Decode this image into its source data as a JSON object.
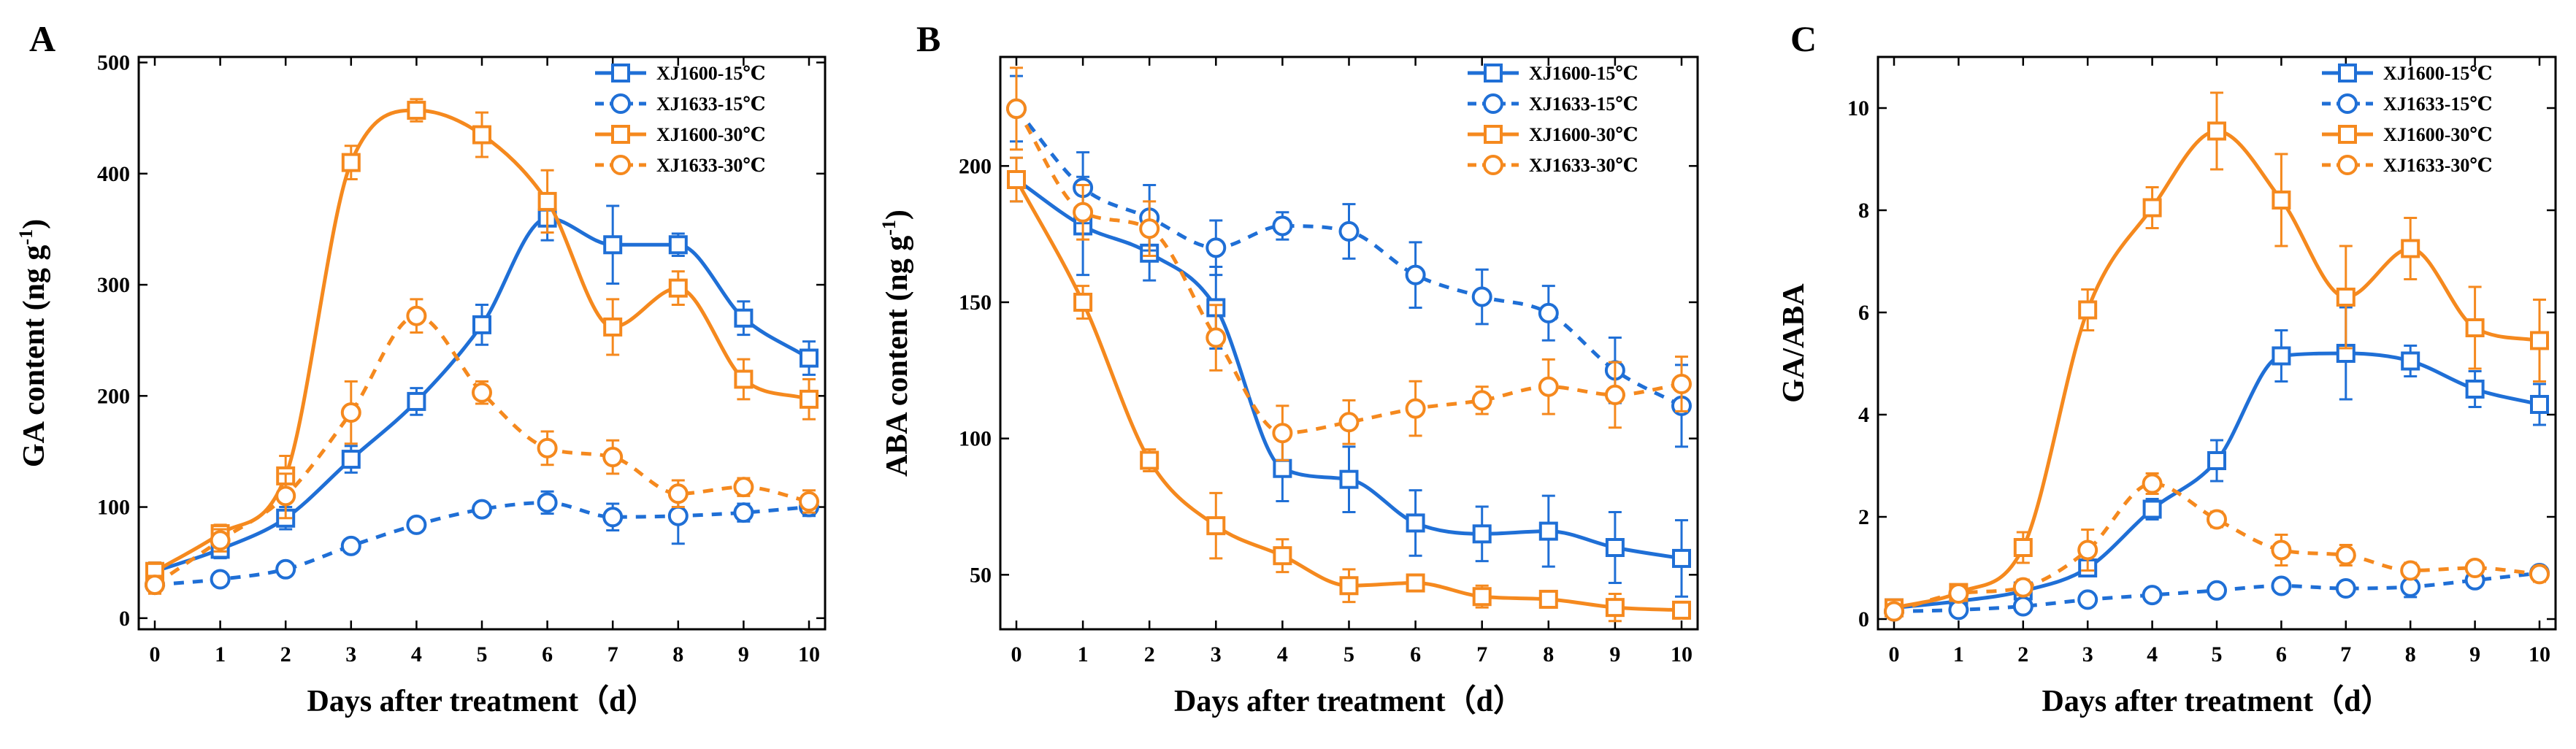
{
  "chart_data": [
    {
      "panel": "A",
      "type": "line",
      "xlabel": "Days after treatment（d）",
      "ylabel": "GA content (ng g",
      "ylabel_sup": "-1",
      "ylabel_end": ")",
      "xlim": [
        0,
        10
      ],
      "ylim": [
        -10,
        505
      ],
      "xticks": [
        0,
        1,
        2,
        3,
        4,
        5,
        6,
        7,
        8,
        9,
        10
      ],
      "yticks": [
        0,
        100,
        200,
        300,
        400,
        500
      ],
      "legend_position": "top-right",
      "series": [
        {
          "name": "XJ1600-15℃",
          "color": "#1f6fd6",
          "marker": "square",
          "dash": false,
          "x": [
            0,
            1,
            2,
            3,
            4,
            5,
            6,
            7,
            8,
            9,
            10
          ],
          "values": [
            42,
            62,
            90,
            143,
            195,
            264,
            360,
            336,
            336,
            270,
            234
          ],
          "err": [
            8,
            8,
            10,
            12,
            12,
            18,
            20,
            35,
            10,
            15,
            15
          ]
        },
        {
          "name": "XJ1633-15℃",
          "color": "#1f6fd6",
          "marker": "circle",
          "dash": true,
          "x": [
            0,
            1,
            2,
            3,
            4,
            5,
            6,
            7,
            8,
            9,
            10
          ],
          "values": [
            30,
            35,
            44,
            65,
            84,
            98,
            104,
            91,
            92,
            95,
            100
          ],
          "err": [
            6,
            5,
            5,
            6,
            5,
            6,
            10,
            12,
            25,
            8,
            8
          ]
        },
        {
          "name": "XJ1600-30℃",
          "color": "#f5891e",
          "marker": "square",
          "dash": false,
          "x": [
            0,
            1,
            2,
            3,
            4,
            5,
            6,
            7,
            8,
            9,
            10
          ],
          "values": [
            42,
            76,
            128,
            410,
            457,
            435,
            375,
            262,
            297,
            215,
            197
          ],
          "err": [
            8,
            8,
            18,
            15,
            10,
            20,
            28,
            25,
            15,
            18,
            18
          ]
        },
        {
          "name": "XJ1633-30℃",
          "color": "#f5891e",
          "marker": "circle",
          "dash": true,
          "x": [
            0,
            1,
            2,
            3,
            4,
            5,
            6,
            7,
            8,
            9,
            10
          ],
          "values": [
            30,
            70,
            110,
            185,
            272,
            203,
            153,
            145,
            112,
            118,
            105
          ],
          "err": [
            8,
            10,
            20,
            28,
            15,
            10,
            15,
            15,
            12,
            8,
            10
          ]
        }
      ]
    },
    {
      "panel": "B",
      "type": "line",
      "xlabel": "Days after treatment（d）",
      "ylabel": "ABA content (ng g",
      "ylabel_sup": "-1",
      "ylabel_end": ")",
      "xlim": [
        0,
        10
      ],
      "ylim": [
        30,
        240
      ],
      "xticks": [
        0,
        1,
        2,
        3,
        4,
        5,
        6,
        7,
        8,
        9,
        10
      ],
      "yticks": [
        50,
        100,
        150,
        200
      ],
      "legend_position": "top-right",
      "series": [
        {
          "name": "XJ1600-15℃",
          "color": "#1f6fd6",
          "marker": "square",
          "dash": false,
          "x": [
            0,
            1,
            2,
            3,
            4,
            5,
            6,
            7,
            8,
            9,
            10
          ],
          "values": [
            195,
            178,
            168,
            148,
            89,
            85,
            69,
            65,
            66,
            60,
            56
          ],
          "err": [
            8,
            18,
            10,
            15,
            12,
            12,
            12,
            10,
            13,
            13,
            14
          ]
        },
        {
          "name": "XJ1633-15℃",
          "color": "#1f6fd6",
          "marker": "circle",
          "dash": true,
          "x": [
            0,
            1,
            2,
            3,
            4,
            5,
            6,
            7,
            8,
            9,
            10
          ],
          "values": [
            221,
            192,
            181,
            170,
            178,
            176,
            160,
            152,
            146,
            125,
            112
          ],
          "err": [
            12,
            13,
            12,
            10,
            5,
            10,
            12,
            10,
            10,
            12,
            15
          ]
        },
        {
          "name": "XJ1600-30℃",
          "color": "#f5891e",
          "marker": "square",
          "dash": false,
          "x": [
            0,
            1,
            2,
            3,
            4,
            5,
            6,
            7,
            8,
            9,
            10
          ],
          "values": [
            195,
            150,
            92,
            68,
            57,
            46,
            47,
            42,
            41,
            38,
            37
          ],
          "err": [
            8,
            6,
            4,
            12,
            6,
            6,
            3,
            4,
            3,
            5,
            3
          ]
        },
        {
          "name": "XJ1633-30℃",
          "color": "#f5891e",
          "marker": "circle",
          "dash": true,
          "x": [
            0,
            1,
            2,
            3,
            4,
            5,
            6,
            7,
            8,
            9,
            10
          ],
          "values": [
            221,
            183,
            177,
            137,
            102,
            106,
            111,
            114,
            119,
            116,
            120
          ],
          "err": [
            15,
            10,
            10,
            12,
            10,
            8,
            10,
            5,
            10,
            12,
            10
          ]
        }
      ]
    },
    {
      "panel": "C",
      "type": "line",
      "xlabel": "Days after treatment（d）",
      "ylabel": "GA/ABA",
      "ylabel_sup": "",
      "ylabel_end": "",
      "xlim": [
        0,
        10
      ],
      "ylim": [
        -0.2,
        11
      ],
      "xticks": [
        0,
        1,
        2,
        3,
        4,
        5,
        6,
        7,
        8,
        9,
        10
      ],
      "yticks": [
        0,
        2,
        4,
        6,
        8,
        10
      ],
      "legend_position": "top-right",
      "series": [
        {
          "name": "XJ1600-15℃",
          "color": "#1f6fd6",
          "marker": "square",
          "dash": false,
          "x": [
            0,
            1,
            2,
            3,
            4,
            5,
            6,
            7,
            8,
            9,
            10
          ],
          "values": [
            0.22,
            0.35,
            0.55,
            1.0,
            2.15,
            3.1,
            5.15,
            5.2,
            5.05,
            4.5,
            4.2
          ],
          "err": [
            0.08,
            0.1,
            0.12,
            0.15,
            0.2,
            0.4,
            0.5,
            0.9,
            0.3,
            0.35,
            0.4
          ]
        },
        {
          "name": "XJ1633-15℃",
          "color": "#1f6fd6",
          "marker": "circle",
          "dash": true,
          "x": [
            0,
            1,
            2,
            3,
            4,
            5,
            6,
            7,
            8,
            9,
            10
          ],
          "values": [
            0.15,
            0.18,
            0.25,
            0.38,
            0.47,
            0.56,
            0.65,
            0.6,
            0.63,
            0.76,
            0.9
          ],
          "err": [
            0.05,
            0.05,
            0.06,
            0.06,
            0.05,
            0.06,
            0.1,
            0.1,
            0.2,
            0.1,
            0.12
          ]
        },
        {
          "name": "XJ1600-30℃",
          "color": "#f5891e",
          "marker": "square",
          "dash": false,
          "x": [
            0,
            1,
            2,
            3,
            4,
            5,
            6,
            7,
            8,
            9,
            10
          ],
          "values": [
            0.22,
            0.52,
            1.4,
            6.05,
            8.05,
            9.55,
            8.2,
            6.3,
            7.25,
            5.7,
            5.45
          ],
          "err": [
            0.08,
            0.1,
            0.3,
            0.4,
            0.4,
            0.75,
            0.9,
            1.0,
            0.6,
            0.8,
            0.8
          ]
        },
        {
          "name": "XJ1633-30℃",
          "color": "#f5891e",
          "marker": "circle",
          "dash": true,
          "x": [
            0,
            1,
            2,
            3,
            4,
            5,
            6,
            7,
            8,
            9,
            10
          ],
          "values": [
            0.15,
            0.5,
            0.62,
            1.35,
            2.65,
            1.95,
            1.35,
            1.25,
            0.95,
            1.0,
            0.88
          ],
          "err": [
            0.05,
            0.1,
            0.15,
            0.4,
            0.2,
            0.15,
            0.3,
            0.2,
            0.15,
            0.1,
            0.15
          ]
        }
      ]
    }
  ]
}
